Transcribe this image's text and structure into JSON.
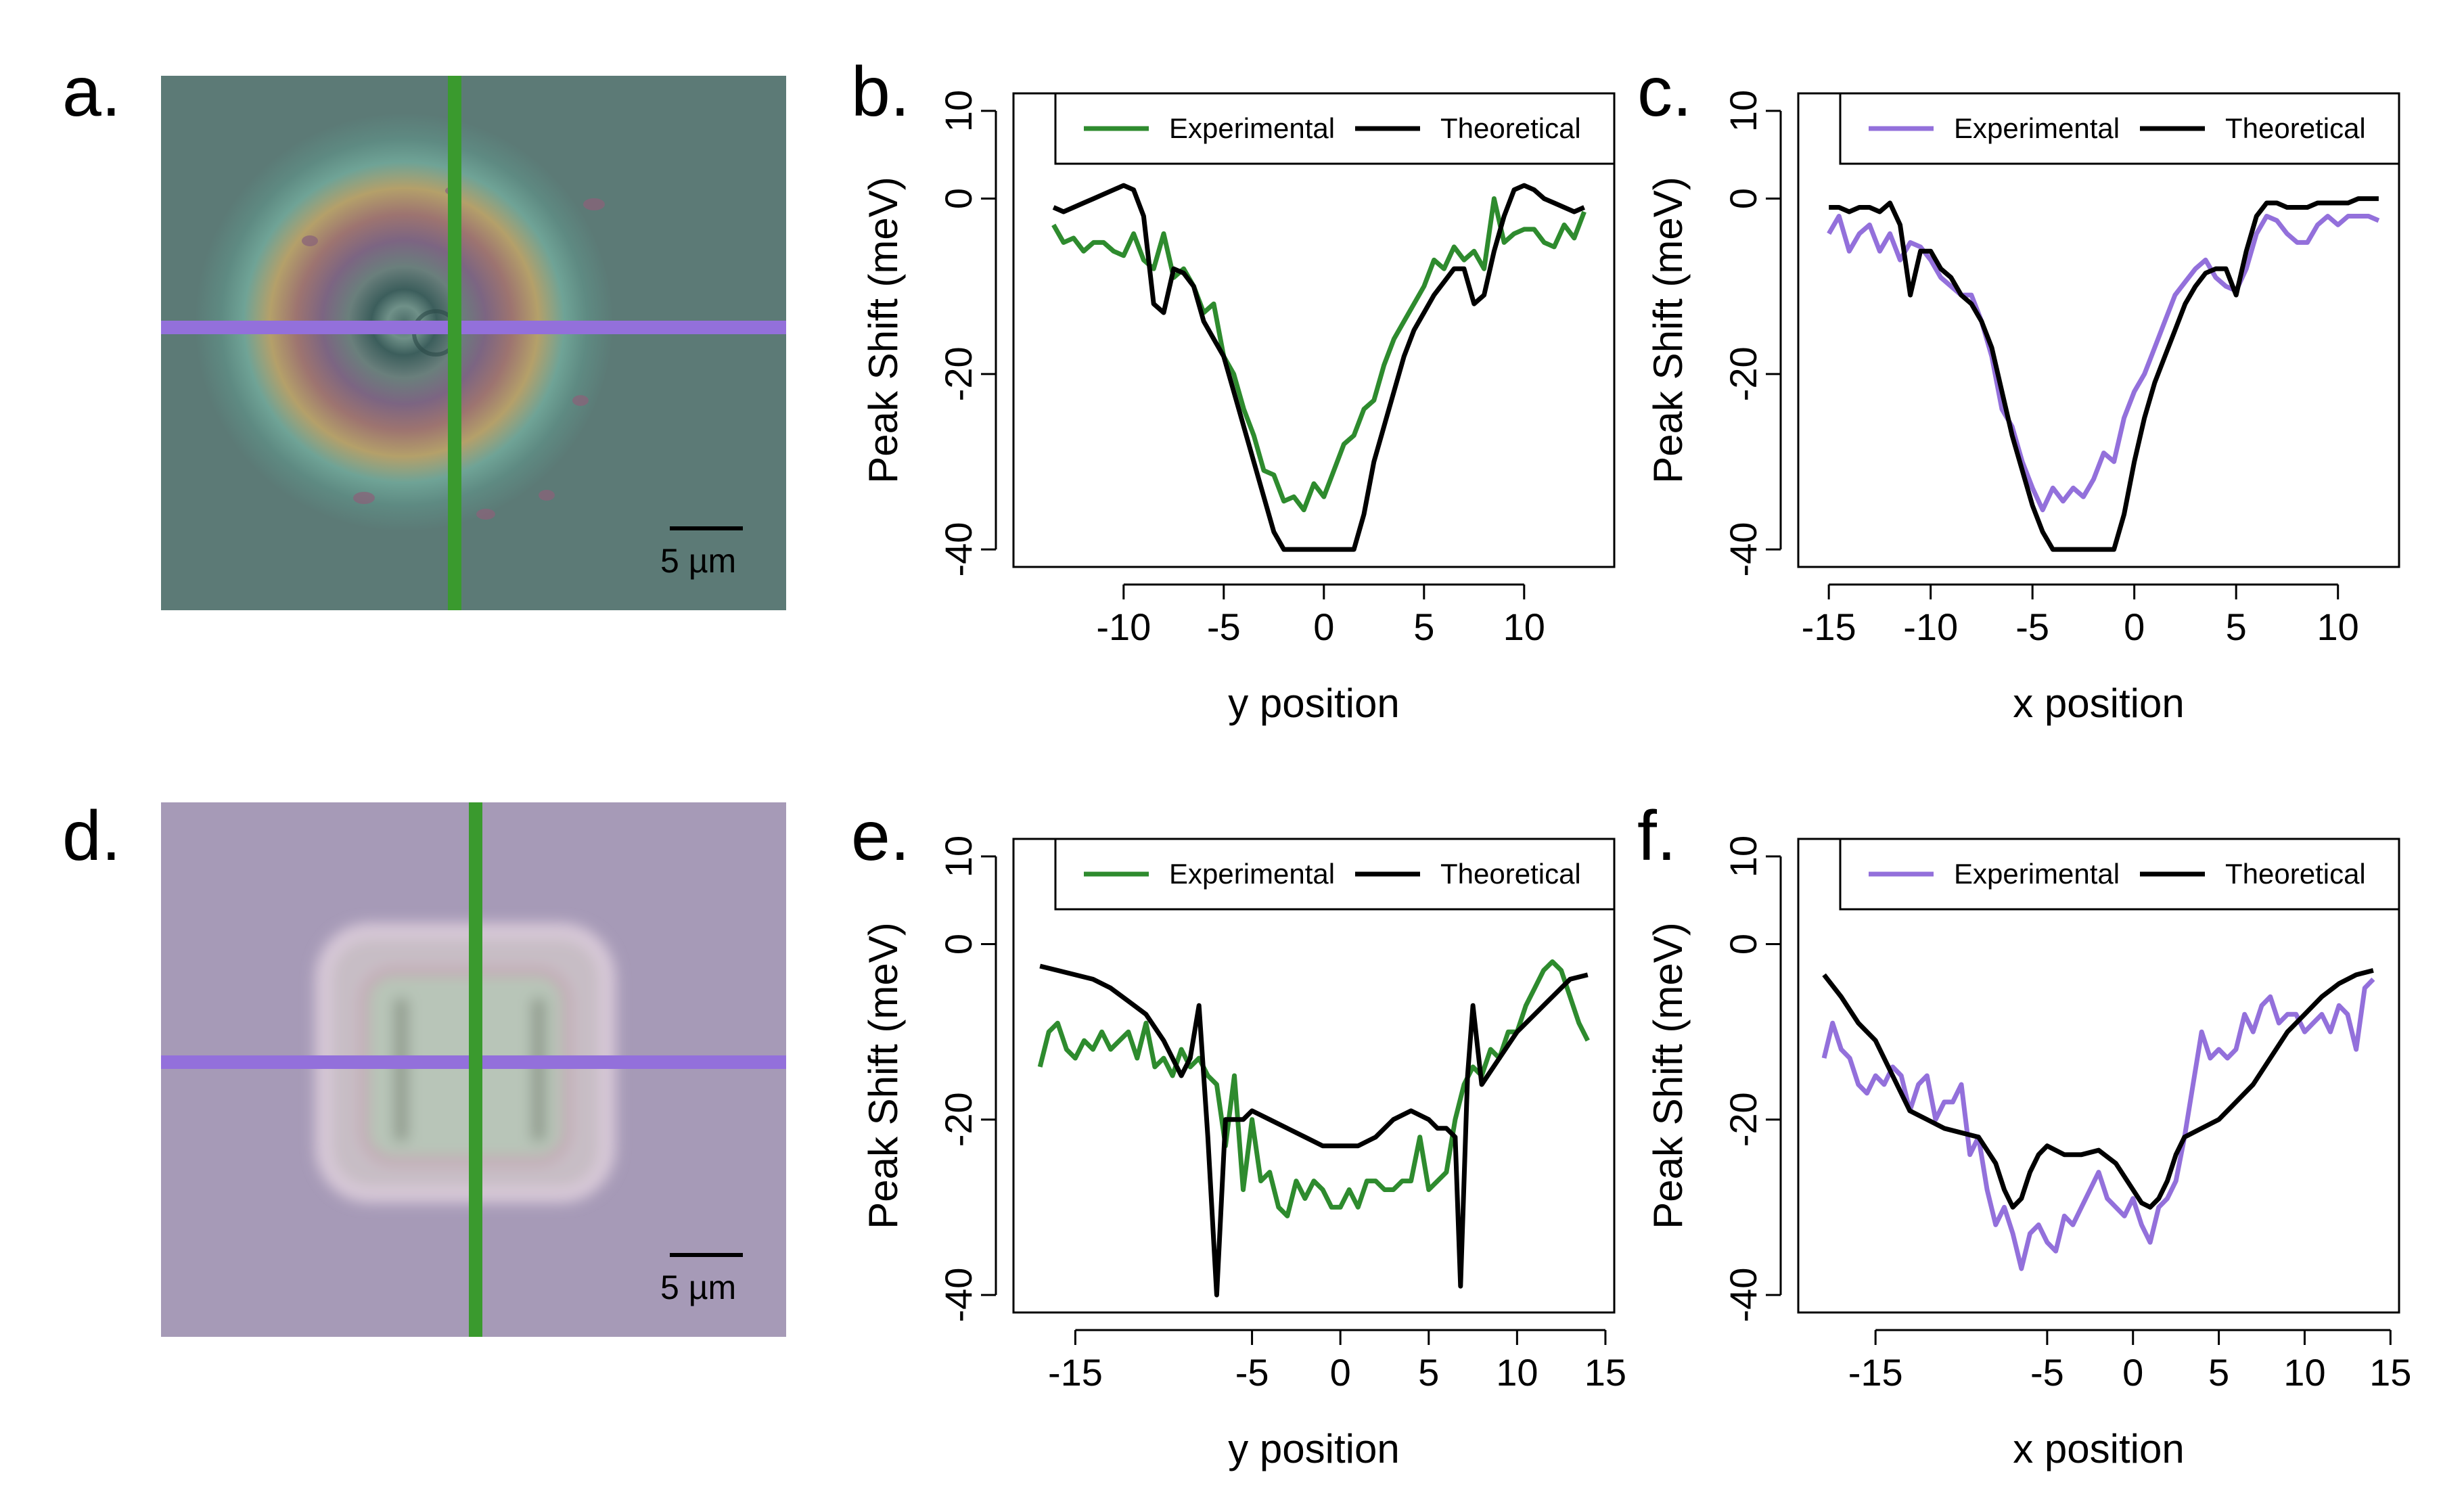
{
  "panels": {
    "a": {
      "letter": "a.",
      "scale_bar": "5 µm"
    },
    "b": {
      "letter": "b."
    },
    "c": {
      "letter": "c."
    },
    "d": {
      "letter": "d.",
      "scale_bar": "5 µm"
    },
    "e": {
      "letter": "e."
    },
    "f": {
      "letter": "f."
    }
  },
  "colors": {
    "green": "#2e8b2e",
    "purple": "#9370db",
    "black": "#000000"
  },
  "chart_data": [
    {
      "id": "b",
      "type": "line",
      "xlabel": "y position",
      "ylabel": "Peak Shift (meV)",
      "xlim": [
        -15.5,
        14.5
      ],
      "ylim": [
        -42,
        12
      ],
      "xticks": [
        -10,
        -5,
        0,
        5,
        10
      ],
      "yticks": [
        -40,
        -20,
        0,
        10
      ],
      "legend": {
        "position": "top",
        "entries": [
          "Experimental",
          "Theoretical"
        ]
      },
      "series": [
        {
          "name": "Experimental",
          "color": "#2e8b2e",
          "x": [
            -13.5,
            -13,
            -12.5,
            -12,
            -11.5,
            -11,
            -10.5,
            -10,
            -9.5,
            -9,
            -8.5,
            -8,
            -7.5,
            -7,
            -6.5,
            -6,
            -5.5,
            -5,
            -4.5,
            -4,
            -3.5,
            -3,
            -2.5,
            -2,
            -1.5,
            -1,
            -0.5,
            0,
            0.5,
            1,
            1.5,
            2,
            2.5,
            3,
            3.5,
            4,
            4.5,
            5,
            5.5,
            6,
            6.5,
            7,
            7.5,
            8,
            8.5,
            9,
            9.5,
            10,
            10.5,
            11,
            11.5,
            12,
            12.5,
            13
          ],
          "y": [
            -3,
            -5,
            -4.5,
            -6,
            -5,
            -5,
            -6,
            -6.5,
            -4,
            -7,
            -8,
            -4,
            -9,
            -8,
            -10,
            -13,
            -12,
            -18,
            -20,
            -24,
            -27,
            -31,
            -31.5,
            -34.5,
            -34,
            -35.5,
            -32.5,
            -34,
            -31,
            -28,
            -27,
            -24,
            -23,
            -19,
            -16,
            -14,
            -12,
            -10,
            -7,
            -8,
            -5.5,
            -7,
            -6,
            -8,
            0,
            -5,
            -4,
            -3.5,
            -3.5,
            -5,
            -5.5,
            -3,
            -4.5,
            -1.5
          ]
        },
        {
          "name": "Theoretical",
          "color": "#000000",
          "x": [
            -13.5,
            -13,
            -12.5,
            -12,
            -11.5,
            -11,
            -10.5,
            -10,
            -9.5,
            -9,
            -8.5,
            -8,
            -7.5,
            -7,
            -6.5,
            -6,
            -5.5,
            -5,
            -4.5,
            -4,
            -3.5,
            -3,
            -2.5,
            -2,
            -1.5,
            -1,
            -0.5,
            0,
            0.5,
            1,
            1.5,
            2,
            2.5,
            3,
            3.5,
            4,
            4.5,
            5,
            5.5,
            6,
            6.5,
            7,
            7.5,
            8,
            8.5,
            9,
            9.5,
            10,
            10.5,
            11,
            11.5,
            12,
            12.5,
            13
          ],
          "y": [
            -1,
            -1.5,
            -1,
            -0.5,
            0,
            0.5,
            1,
            1.5,
            1,
            -2,
            -12,
            -13,
            -8,
            -8.5,
            -10,
            -14,
            -16,
            -18,
            -22,
            -26,
            -30,
            -34,
            -38,
            -40,
            -40,
            -40,
            -40,
            -40,
            -40,
            -40,
            -40,
            -36,
            -30,
            -26,
            -22,
            -18,
            -15,
            -13,
            -11,
            -9.5,
            -8,
            -8,
            -12,
            -11,
            -6,
            -2,
            1,
            1.5,
            1,
            0,
            -0.5,
            -1,
            -1.5,
            -1
          ]
        }
      ]
    },
    {
      "id": "c",
      "type": "line",
      "xlabel": "x position",
      "ylabel": "Peak Shift (meV)",
      "xlim": [
        -16.5,
        13
      ],
      "ylim": [
        -42,
        12
      ],
      "xticks": [
        -15,
        -10,
        -5,
        0,
        5,
        10
      ],
      "yticks": [
        -40,
        -20,
        0,
        10
      ],
      "legend": {
        "position": "top",
        "entries": [
          "Experimental",
          "Theoretical"
        ]
      },
      "series": [
        {
          "name": "Experimental",
          "color": "#9370db",
          "x": [
            -15,
            -14.5,
            -14,
            -13.5,
            -13,
            -12.5,
            -12,
            -11.5,
            -11,
            -10.5,
            -10,
            -9.5,
            -9,
            -8.5,
            -8,
            -7.5,
            -7,
            -6.5,
            -6,
            -5.5,
            -5,
            -4.5,
            -4,
            -3.5,
            -3,
            -2.5,
            -2,
            -1.5,
            -1,
            -0.5,
            0,
            0.5,
            1,
            1.5,
            2,
            2.5,
            3,
            3.5,
            4,
            4.5,
            5,
            5.5,
            6,
            6.5,
            7,
            7.5,
            8,
            8.5,
            9,
            9.5,
            10,
            10.5,
            11,
            11.5,
            12
          ],
          "y": [
            -4,
            -2,
            -6,
            -4,
            -3,
            -6,
            -4,
            -7,
            -5,
            -5.5,
            -7,
            -9,
            -10,
            -11,
            -11,
            -14,
            -18,
            -24,
            -26,
            -30,
            -33,
            -35.5,
            -33,
            -34.5,
            -33,
            -34,
            -32,
            -29,
            -30,
            -25,
            -22,
            -20,
            -17,
            -14,
            -11,
            -9.5,
            -8,
            -7,
            -9,
            -10,
            -10.5,
            -8,
            -4,
            -2,
            -2.5,
            -4,
            -5,
            -5,
            -3,
            -2,
            -3,
            -2,
            -2,
            -2,
            -2.5
          ]
        },
        {
          "name": "Theoretical",
          "color": "#000000",
          "x": [
            -15,
            -14.5,
            -14,
            -13.5,
            -13,
            -12.5,
            -12,
            -11.5,
            -11,
            -10.5,
            -10,
            -9.5,
            -9,
            -8.5,
            -8,
            -7.5,
            -7,
            -6.5,
            -6,
            -5.5,
            -5,
            -4.5,
            -4,
            -3.5,
            -3,
            -2.5,
            -2,
            -1.5,
            -1,
            -0.5,
            0,
            0.5,
            1,
            1.5,
            2,
            2.5,
            3,
            3.5,
            4,
            4.5,
            5,
            5.5,
            6,
            6.5,
            7,
            7.5,
            8,
            8.5,
            9,
            9.5,
            10,
            10.5,
            11,
            11.5,
            12
          ],
          "y": [
            -1,
            -1,
            -1.5,
            -1,
            -1,
            -1.5,
            -0.5,
            -3,
            -11,
            -6,
            -6,
            -8,
            -9,
            -11,
            -12,
            -14,
            -17,
            -22,
            -27,
            -31,
            -35,
            -38,
            -40,
            -40,
            -40,
            -40,
            -40,
            -40,
            -40,
            -36,
            -30,
            -25,
            -21,
            -18,
            -15,
            -12,
            -10,
            -8.5,
            -8,
            -8,
            -11,
            -6,
            -2,
            -0.5,
            -0.5,
            -1,
            -1,
            -1,
            -0.5,
            -0.5,
            -0.5,
            -0.5,
            0,
            0,
            0
          ]
        }
      ]
    },
    {
      "id": "e",
      "type": "line",
      "xlabel": "y position",
      "ylabel": "Peak Shift (meV)",
      "xlim": [
        -18.5,
        15.5
      ],
      "ylim": [
        -42,
        12
      ],
      "xticks": [
        -15,
        -5,
        0,
        5,
        10,
        15
      ],
      "yticks": [
        -40,
        -20,
        0,
        10
      ],
      "legend": {
        "position": "top",
        "entries": [
          "Experimental",
          "Theoretical"
        ]
      },
      "series": [
        {
          "name": "Experimental",
          "color": "#2e8b2e",
          "x": [
            -17,
            -16.5,
            -16,
            -15.5,
            -15,
            -14.5,
            -14,
            -13.5,
            -13,
            -12.5,
            -12,
            -11.5,
            -11,
            -10.5,
            -10,
            -9.5,
            -9,
            -8.5,
            -8,
            -7.5,
            -7,
            -6.5,
            -6,
            -5.5,
            -5,
            -4.5,
            -4,
            -3.5,
            -3,
            -2.5,
            -2,
            -1.5,
            -1,
            -0.5,
            0,
            0.5,
            1,
            1.5,
            2,
            2.5,
            3,
            3.5,
            4,
            4.5,
            5,
            5.5,
            6,
            6.5,
            7,
            7.5,
            8,
            8.5,
            9,
            9.5,
            10,
            10.5,
            11,
            11.5,
            12,
            12.5,
            13,
            13.5,
            14
          ],
          "y": [
            -14,
            -10,
            -9,
            -12,
            -13,
            -11,
            -12,
            -10,
            -12,
            -11,
            -10,
            -13,
            -9,
            -14,
            -13,
            -15,
            -12,
            -14,
            -13,
            -15,
            -16,
            -23,
            -15,
            -28,
            -20,
            -27,
            -26,
            -30,
            -31,
            -27,
            -29,
            -27,
            -28,
            -30,
            -30,
            -28,
            -30,
            -27,
            -27,
            -28,
            -28,
            -27,
            -27,
            -22,
            -28,
            -27,
            -26,
            -20,
            -16,
            -14,
            -15,
            -12,
            -13,
            -10,
            -10,
            -7,
            -5,
            -3,
            -2,
            -3,
            -6,
            -9,
            -11
          ]
        },
        {
          "name": "Theoretical",
          "color": "#000000",
          "x": [
            -17,
            -16,
            -15,
            -14,
            -13,
            -12,
            -11,
            -10,
            -9,
            -8.5,
            -8,
            -7.5,
            -7,
            -6.5,
            -6,
            -5.5,
            -5,
            -4,
            -3,
            -2,
            -1,
            0,
            1,
            2,
            3,
            4,
            5,
            5.5,
            6,
            6.5,
            6.8,
            7.2,
            7.5,
            8,
            9,
            10,
            11,
            12,
            13,
            14
          ],
          "y": [
            -2.5,
            -3,
            -3.5,
            -4,
            -5,
            -6.5,
            -8,
            -11,
            -15,
            -13,
            -7,
            -22,
            -40,
            -20,
            -20,
            -20,
            -19,
            -20,
            -21,
            -22,
            -23,
            -23,
            -23,
            -22,
            -20,
            -19,
            -20,
            -21,
            -21,
            -22,
            -39,
            -15,
            -7,
            -16,
            -13,
            -10,
            -8,
            -6,
            -4,
            -3.5
          ]
        }
      ]
    },
    {
      "id": "f",
      "type": "line",
      "xlabel": "x position",
      "ylabel": "Peak Shift (meV)",
      "xlim": [
        -19.5,
        15.5
      ],
      "ylim": [
        -42,
        12
      ],
      "xticks": [
        -15,
        -5,
        0,
        5,
        10,
        15
      ],
      "yticks": [
        -40,
        -20,
        0,
        10
      ],
      "legend": {
        "position": "top",
        "entries": [
          "Experimental",
          "Theoretical"
        ]
      },
      "series": [
        {
          "name": "Experimental",
          "color": "#9370db",
          "x": [
            -18,
            -17.5,
            -17,
            -16.5,
            -16,
            -15.5,
            -15,
            -14.5,
            -14,
            -13.5,
            -13,
            -12.5,
            -12,
            -11.5,
            -11,
            -10.5,
            -10,
            -9.5,
            -9,
            -8.5,
            -8,
            -7.5,
            -7,
            -6.5,
            -6,
            -5.5,
            -5,
            -4.5,
            -4,
            -3.5,
            -3,
            -2.5,
            -2,
            -1.5,
            -1,
            -0.5,
            0,
            0.5,
            1,
            1.5,
            2,
            2.5,
            3,
            3.5,
            4,
            4.5,
            5,
            5.5,
            6,
            6.5,
            7,
            7.5,
            8,
            8.5,
            9,
            9.5,
            10,
            10.5,
            11,
            11.5,
            12,
            12.5,
            13,
            13.5,
            14
          ],
          "y": [
            -13,
            -9,
            -12,
            -13,
            -16,
            -17,
            -15,
            -16,
            -14,
            -15,
            -19,
            -16,
            -15,
            -20,
            -18,
            -18,
            -16,
            -24,
            -22,
            -28,
            -32,
            -30,
            -33,
            -37,
            -33,
            -32,
            -34,
            -35,
            -31,
            -32,
            -30,
            -28,
            -26,
            -29,
            -30,
            -31,
            -29,
            -32,
            -34,
            -30,
            -29,
            -27,
            -22,
            -16,
            -10,
            -13,
            -12,
            -13,
            -12,
            -8,
            -10,
            -7,
            -6,
            -9,
            -8,
            -8,
            -10,
            -9,
            -8,
            -10,
            -7,
            -8,
            -12,
            -5,
            -4
          ]
        },
        {
          "name": "Theoretical",
          "color": "#000000",
          "x": [
            -18,
            -17,
            -16,
            -15,
            -14,
            -13,
            -12,
            -11,
            -10,
            -9,
            -8,
            -7.5,
            -7,
            -6.5,
            -6,
            -5.5,
            -5,
            -4,
            -3,
            -2,
            -1,
            0,
            0.5,
            1,
            1.5,
            2,
            2.5,
            3,
            4,
            5,
            6,
            7,
            8,
            9,
            10,
            11,
            12,
            13,
            14
          ],
          "y": [
            -3.5,
            -6,
            -9,
            -11,
            -15,
            -19,
            -20,
            -21,
            -21.5,
            -22,
            -25,
            -28,
            -30,
            -29,
            -26,
            -24,
            -23,
            -24,
            -24,
            -23.5,
            -25,
            -28,
            -29.5,
            -30,
            -29,
            -27,
            -24,
            -22,
            -21,
            -20,
            -18,
            -16,
            -13,
            -10,
            -8,
            -6,
            -4.5,
            -3.5,
            -3
          ]
        }
      ]
    }
  ]
}
